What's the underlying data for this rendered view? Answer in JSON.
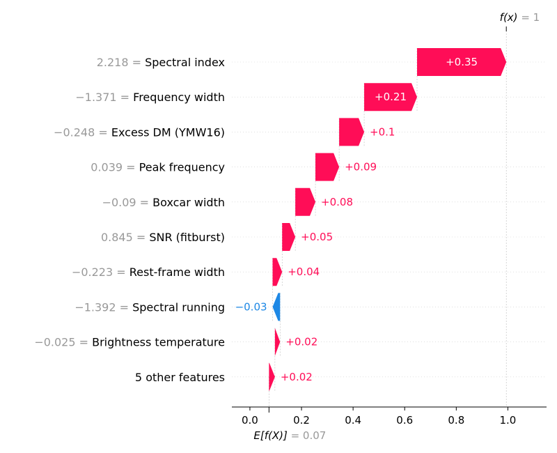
{
  "chart_data": {
    "type": "waterfall",
    "fx_label": "f(x)",
    "fx_value": "1",
    "ex_label": "E[f(X)]",
    "ex_value": "0.07",
    "base": 0.074,
    "xlim": [
      -0.07,
      1.15
    ],
    "xticks": [
      0.0,
      0.2,
      0.4,
      0.6,
      0.8,
      1.0
    ],
    "xtick_labels": [
      "0.0",
      "0.2",
      "0.4",
      "0.6",
      "0.8",
      "1.0"
    ],
    "grid": false,
    "colors": {
      "positive": "#ff0d57",
      "negative": "#1e88e5",
      "value_text": "#999999"
    },
    "features": [
      {
        "value": "2.218",
        "name": "Spectral index",
        "contribution": 0.346,
        "label": "+0.35"
      },
      {
        "value": "−1.371",
        "name": "Frequency width",
        "contribution": 0.205,
        "label": "+0.21"
      },
      {
        "value": "−0.248",
        "name": "Excess DM (YMW16)",
        "contribution": 0.097,
        "label": "+0.1"
      },
      {
        "value": "0.039",
        "name": "Peak frequency",
        "contribution": 0.092,
        "label": "+0.09"
      },
      {
        "value": "−0.09",
        "name": "Boxcar width",
        "contribution": 0.078,
        "label": "+0.08"
      },
      {
        "value": "0.845",
        "name": "SNR (fitburst)",
        "contribution": 0.051,
        "label": "+0.05"
      },
      {
        "value": "−0.223",
        "name": "Rest-frame width",
        "contribution": 0.037,
        "label": "+0.04"
      },
      {
        "value": "−1.392",
        "name": "Spectral running",
        "contribution": -0.029,
        "label": "−0.03"
      },
      {
        "value": "−0.025",
        "name": "Brightness temperature",
        "contribution": 0.02,
        "label": "+0.02"
      },
      {
        "value": "",
        "name": "5 other features",
        "contribution": 0.023,
        "label": "+0.02"
      }
    ]
  }
}
